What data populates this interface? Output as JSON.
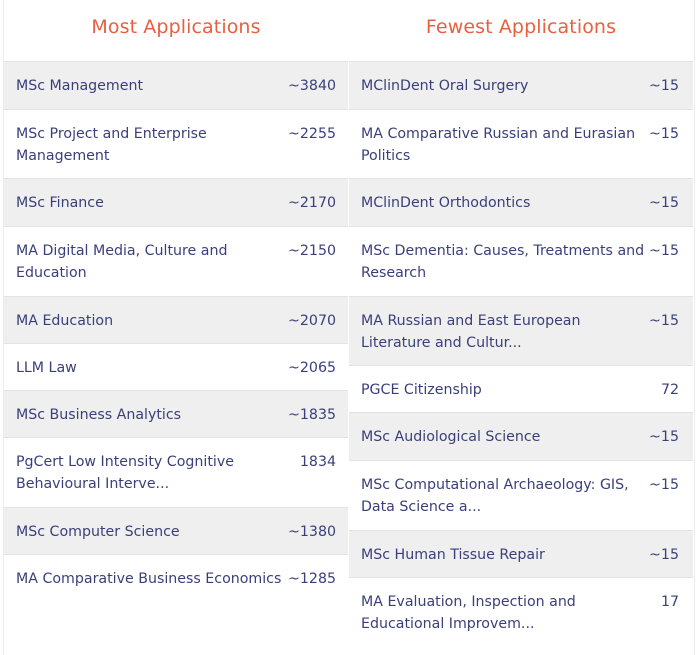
{
  "most": {
    "title": "Most Applications",
    "rows": [
      {
        "name": "MSc Management",
        "count": "~3840"
      },
      {
        "name": "MSc Project and Enterprise Management",
        "count": "~2255"
      },
      {
        "name": "MSc Finance",
        "count": "~2170"
      },
      {
        "name": "MA Digital Media, Culture and Education",
        "count": "~2150"
      },
      {
        "name": "MA Education",
        "count": "~2070"
      },
      {
        "name": "LLM Law",
        "count": "~2065"
      },
      {
        "name": "MSc Business Analytics",
        "count": "~1835"
      },
      {
        "name": "PgCert Low Intensity Cognitive Behavioural Interve...",
        "count": "1834"
      },
      {
        "name": "MSc Computer Science",
        "count": "~1380"
      },
      {
        "name": "MA Comparative Business Economics",
        "count": "~1285"
      }
    ]
  },
  "fewest": {
    "title": "Fewest Applications",
    "rows": [
      {
        "name": "MClinDent Oral Surgery",
        "count": "~15"
      },
      {
        "name": "MA Comparative Russian and Eurasian Politics",
        "count": "~15"
      },
      {
        "name": "MClinDent Orthodontics",
        "count": "~15"
      },
      {
        "name": "MSc Dementia: Causes, Treatments and Research",
        "count": "~15"
      },
      {
        "name": "MA Russian and East European Literature and Cultur...",
        "count": "~15"
      },
      {
        "name": "PGCE Citizenship",
        "count": "72"
      },
      {
        "name": "MSc Audiological Science",
        "count": "~15"
      },
      {
        "name": "MSc Computational Archaeology: GIS, Data Science a...",
        "count": "~15"
      },
      {
        "name": "MSc Human Tissue Repair",
        "count": "~15"
      },
      {
        "name": "MA Evaluation, Inspection and Educational Improvem...",
        "count": "17"
      }
    ]
  }
}
